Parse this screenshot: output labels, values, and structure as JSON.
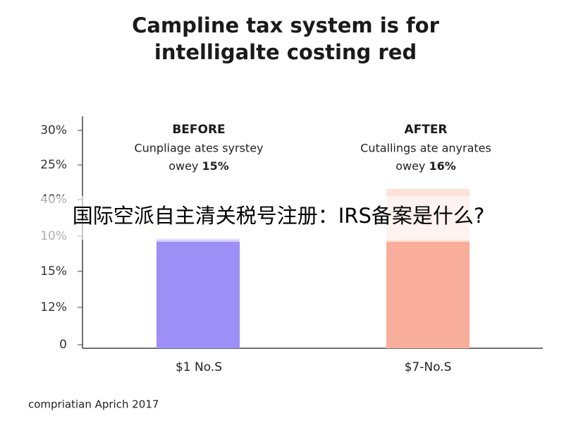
{
  "title": [
    "Campline tax system is for",
    "intelligalte costing red"
  ],
  "axis_labels": [
    "30%",
    "25%",
    "40%",
    "10%",
    "15%",
    "12%",
    "0"
  ],
  "panels": [
    {
      "heading": "BEFORE",
      "caption": "Cunpliage ates syrstey",
      "caption2": "owey",
      "highlight": "15%",
      "category": "$1 No.S"
    },
    {
      "heading": "AFTER",
      "caption": "Cutallings ate anyrates",
      "caption2": "owey",
      "highlight": "16%",
      "category": "$7-No.S"
    }
  ],
  "banner": "国际空派自主清关税号注册：IRS备案是什么?",
  "footer": "compriatian Aprich 2017"
}
